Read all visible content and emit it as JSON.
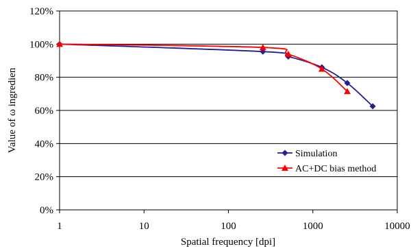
{
  "chart_data": {
    "type": "line",
    "xscale": "log",
    "xlim": [
      1,
      10000
    ],
    "ylim": [
      0,
      120
    ],
    "xlabel": "Spatial frequency [dpi]",
    "ylabel": "Value of ω ingredien",
    "x_ticks": [
      "1",
      "10",
      "100",
      "1000",
      "10000"
    ],
    "y_ticks": [
      "0%",
      "20%",
      "40%",
      "60%",
      "80%",
      "100%",
      "120%"
    ],
    "grid": "horizontal",
    "legend_position": "bottom-right",
    "series": [
      {
        "name": "Simulation",
        "color": "#1f1f8f",
        "marker": "diamond",
        "x": [
          1,
          256,
          512,
          1280,
          2560,
          5120
        ],
        "y": [
          100,
          95.5,
          92.5,
          86,
          76.5,
          62.5
        ]
      },
      {
        "name": "AC+DC bias method",
        "color": "#ff0000",
        "marker": "triangle",
        "x": [
          1,
          256,
          512,
          1280,
          2560
        ],
        "y": [
          100,
          98,
          94,
          85,
          71.5
        ]
      }
    ]
  }
}
